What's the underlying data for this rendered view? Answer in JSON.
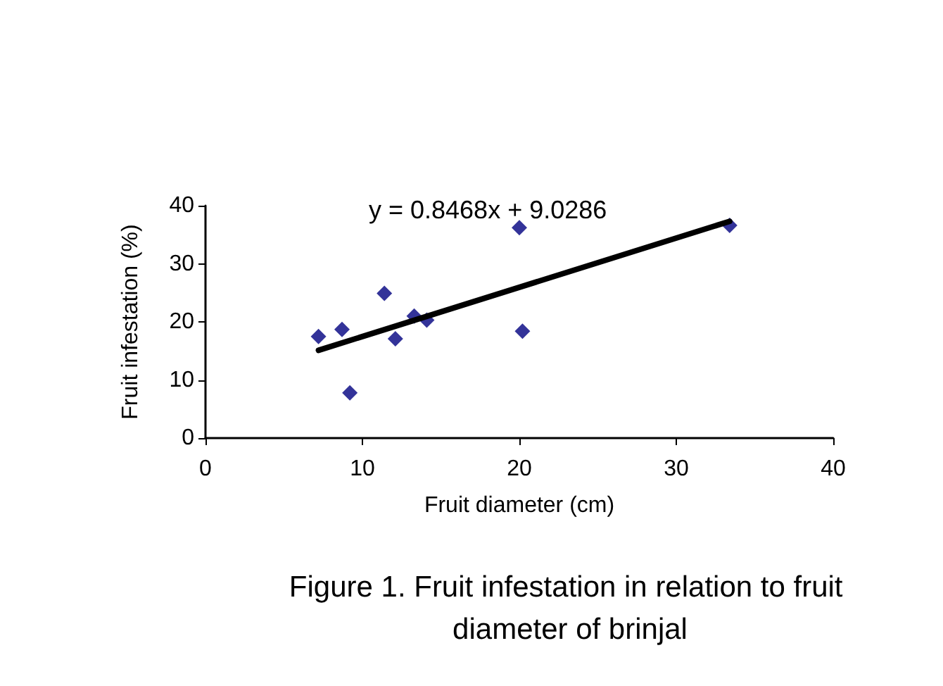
{
  "chart_data": {
    "type": "scatter",
    "title": "Figure 1. Fruit infestation in relation to fruit diameter of brinjal",
    "xlabel": "Fruit diameter (cm)",
    "ylabel": "Fruit infestation (%)",
    "annotations": [
      "y = 0.8468x + 9.0286"
    ],
    "x": [
      7.2,
      8.7,
      9.2,
      11.4,
      12.1,
      13.3,
      14.1,
      20.0,
      20.2,
      33.4
    ],
    "series": [
      {
        "color": "#000080",
        "marker": "diamond",
        "values": [
          17.5,
          18.7,
          7.8,
          24.9,
          17.1,
          21.0,
          20.3,
          36.2,
          18.4,
          36.6
        ]
      },
      {
        "type": "line",
        "color": "#000000",
        "marker": "none",
        "x": [
          7.2,
          33.4
        ],
        "values": [
          15.1,
          37.3
        ]
      }
    ],
    "xlim": [
      0,
      40
    ],
    "xticks": [
      0,
      10,
      20,
      30,
      40
    ],
    "ylim": [
      0,
      40
    ],
    "yticks": [
      0,
      10,
      20,
      30,
      40
    ],
    "grid": false
  }
}
